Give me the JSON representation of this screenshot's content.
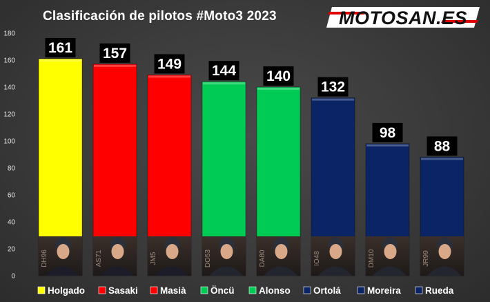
{
  "header": {
    "title": "Clasificación de pilotos #Moto3 2023",
    "logo_text": "MOTOSAN.ES"
  },
  "chart_data": {
    "type": "bar",
    "title": "Clasificación de pilotos #Moto3 2023",
    "categories": [
      "Holgado",
      "Sasaki",
      "Masià",
      "Öncü",
      "Alonso",
      "Ortolá",
      "Moreira",
      "Rueda"
    ],
    "values": [
      161,
      157,
      149,
      144,
      140,
      132,
      98,
      88
    ],
    "rider_tags": [
      "DH96",
      "AS71",
      "JM5",
      "DO53",
      "DA80",
      "IO48",
      "DM10",
      "JR99"
    ],
    "colors": [
      "#ffff00",
      "#ff0000",
      "#ff0000",
      "#00cc55",
      "#00cc55",
      "#0a2466",
      "#0a2466",
      "#0a2466"
    ],
    "yticks": [
      0,
      20,
      40,
      60,
      80,
      100,
      120,
      140,
      160,
      180
    ],
    "ylim": [
      0,
      180
    ],
    "grid": false,
    "legend_position": "bottom",
    "xlabel": "",
    "ylabel": ""
  }
}
